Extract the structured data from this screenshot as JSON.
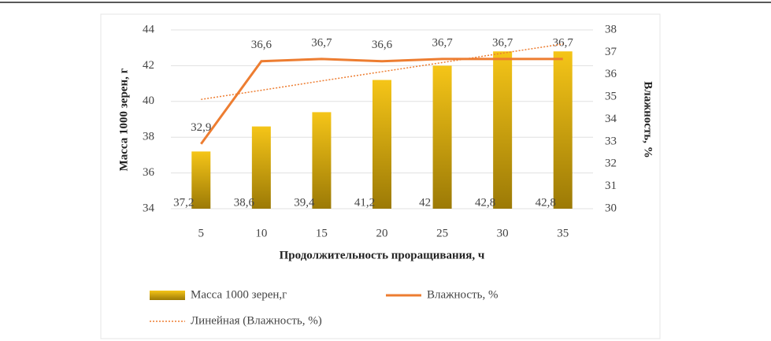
{
  "chart_data": {
    "type": "bar_line",
    "categories": [
      5,
      10,
      15,
      20,
      25,
      30,
      35
    ],
    "x_label": "Продолжительность проращивания, ч",
    "y_label": "Масса 1000 зерен, г",
    "y2_label": "Влажность, %",
    "ylim": [
      34,
      44
    ],
    "yticks": [
      34,
      36,
      38,
      40,
      42,
      44
    ],
    "y2lim": [
      30,
      38
    ],
    "y2ticks": [
      30,
      31,
      32,
      33,
      34,
      35,
      36,
      37,
      38
    ],
    "grid": true,
    "series": [
      {
        "name": "Масса 1000 зерен,г",
        "type": "bar",
        "color": "#f5c518",
        "values": [
          37.2,
          38.6,
          39.4,
          41.2,
          42,
          42.8,
          42.8
        ],
        "value_labels": [
          "37,2",
          "38,6",
          "39,4",
          "41,2",
          "42",
          "42,8",
          "42,8"
        ]
      },
      {
        "name": "Влажность, %",
        "type": "line",
        "axis": "y2",
        "color": "#ed7d31",
        "values": [
          32.9,
          36.6,
          36.7,
          36.6,
          36.7,
          36.7,
          36.7
        ],
        "value_labels": [
          "32,9",
          "36,6",
          "36,7",
          "36,6",
          "36,7",
          "36,7",
          "36,7"
        ]
      },
      {
        "name": "Линейная (Влажность, %)",
        "type": "trend",
        "axis": "y2",
        "color": "#ed7d31",
        "values": [
          34.89,
          35.3,
          35.72,
          36.13,
          36.54,
          36.96,
          37.37
        ]
      }
    ]
  }
}
